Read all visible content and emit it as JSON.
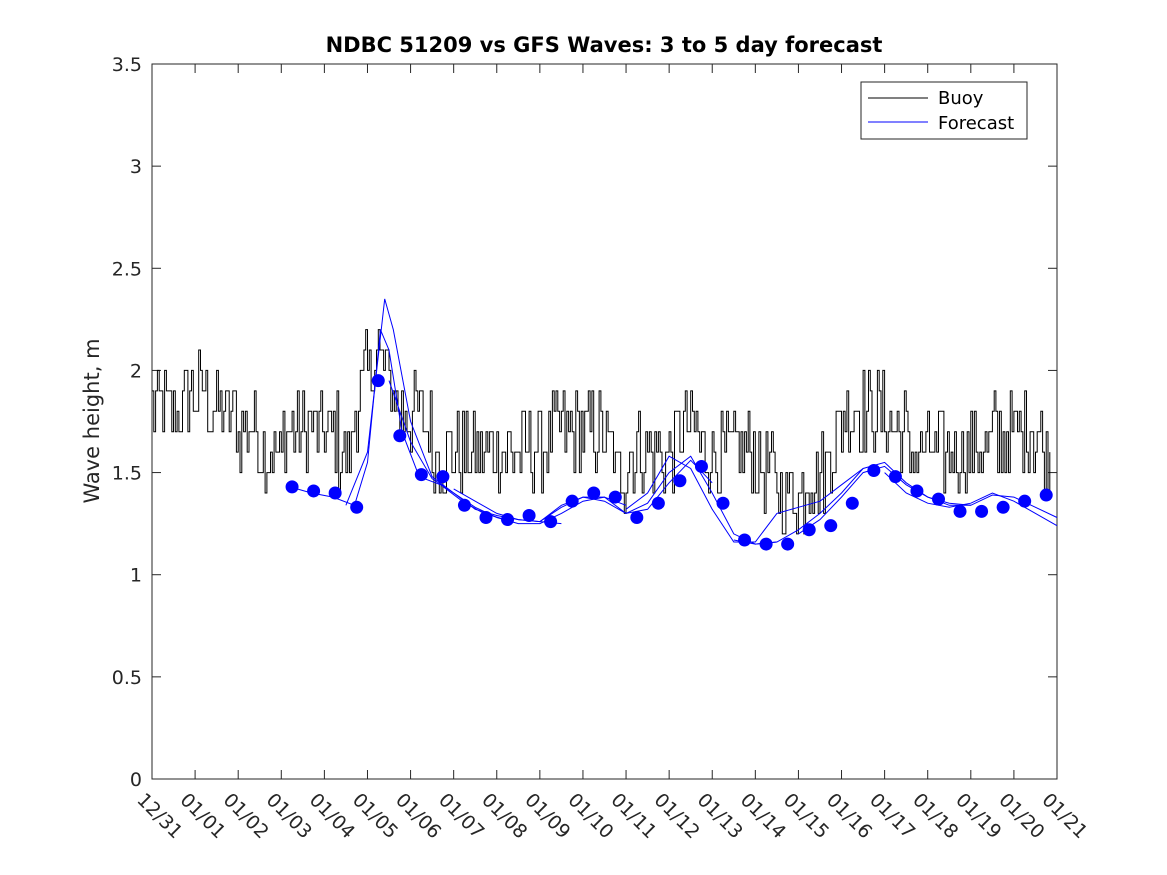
{
  "chart_data": {
    "type": "line",
    "title": "NDBC 51209 vs GFS Waves: 3 to 5 day forecast",
    "xlabel": "",
    "ylabel": "Wave height, m",
    "xlim": [
      0,
      21
    ],
    "ylim": [
      0,
      3.5
    ],
    "yticks": [
      "0",
      "0.5",
      "1",
      "1.5",
      "2",
      "2.5",
      "3",
      "3.5"
    ],
    "xtick_labels": [
      "12/31",
      "01/01",
      "01/02",
      "01/03",
      "01/04",
      "01/05",
      "01/06",
      "01/07",
      "01/08",
      "01/09",
      "01/10",
      "01/11",
      "01/12",
      "01/13",
      "01/14",
      "01/15",
      "01/16",
      "01/17",
      "01/18",
      "01/19",
      "01/20",
      "01/21"
    ],
    "legend": {
      "placement": "top-right",
      "entries": [
        "Buoy",
        "Forecast"
      ]
    },
    "buoy_keypoints": {
      "x": [
        0,
        0.5,
        1.0,
        1.5,
        2.0,
        2.5,
        2.9,
        3.3,
        3.8,
        4.3,
        4.6,
        4.8,
        5.0,
        5.2,
        5.5,
        5.8,
        6.0,
        6.3,
        6.6,
        6.9,
        7.5,
        8.0,
        8.5,
        9.0,
        9.5,
        10.0,
        10.5,
        10.8,
        11.0,
        11.5,
        12.0,
        12.4,
        12.8,
        13.0,
        13.5,
        14.0,
        14.3,
        14.6,
        14.9,
        15.3,
        15.7,
        16.0,
        16.4,
        16.8,
        17.1,
        17.5,
        18.0,
        18.5,
        19.0,
        19.5,
        20.0,
        20.5,
        20.8
      ],
      "y": [
        1.8,
        1.8,
        1.9,
        1.8,
        1.75,
        1.65,
        1.6,
        1.75,
        1.7,
        1.65,
        1.6,
        1.9,
        2.0,
        2.1,
        1.9,
        1.8,
        1.85,
        1.75,
        1.6,
        1.6,
        1.65,
        1.6,
        1.65,
        1.6,
        1.7,
        1.65,
        1.7,
        1.5,
        1.55,
        1.6,
        1.6,
        1.75,
        1.6,
        1.55,
        1.55,
        1.55,
        1.5,
        1.4,
        1.38,
        1.5,
        1.55,
        1.75,
        1.8,
        1.85,
        1.75,
        1.65,
        1.6,
        1.65,
        1.6,
        1.65,
        1.65,
        1.7,
        1.6
      ]
    },
    "forecast_points": {
      "x": [
        3.25,
        3.75,
        4.25,
        4.75,
        5.25,
        5.75,
        6.25,
        6.75,
        7.25,
        7.75,
        8.25,
        8.75,
        9.25,
        9.75,
        10.25,
        10.75,
        11.25,
        11.75,
        12.25,
        12.75,
        13.25,
        13.75,
        14.25,
        14.75,
        15.25,
        15.75,
        16.25,
        16.75,
        17.25,
        17.75,
        18.25,
        18.75,
        19.25,
        19.75,
        20.25,
        20.75
      ],
      "y": [
        1.43,
        1.41,
        1.4,
        1.33,
        1.95,
        1.68,
        1.49,
        1.48,
        1.34,
        1.28,
        1.27,
        1.29,
        1.26,
        1.36,
        1.4,
        1.38,
        1.28,
        1.35,
        1.46,
        1.53,
        1.35,
        1.17,
        1.15,
        1.15,
        1.22,
        1.24,
        1.35,
        1.51,
        1.48,
        1.41,
        1.37,
        1.31,
        1.31,
        1.33,
        1.36,
        1.39
      ]
    },
    "forecast_runs": [
      {
        "x": [
          3.2,
          3.7,
          4.2,
          4.7,
          5.0,
          5.3,
          5.5,
          5.8,
          6.2,
          6.7,
          7.2,
          7.7,
          8.2
        ],
        "y": [
          1.43,
          1.4,
          1.38,
          1.34,
          1.55,
          2.2,
          2.1,
          1.7,
          1.48,
          1.44,
          1.36,
          1.3,
          1.27
        ]
      },
      {
        "x": [
          4.5,
          5.0,
          5.4,
          5.6,
          6.0,
          6.5,
          7.0,
          7.5,
          8.0,
          8.5,
          9.0,
          9.5
        ],
        "y": [
          1.34,
          1.6,
          2.35,
          2.2,
          1.75,
          1.48,
          1.4,
          1.32,
          1.29,
          1.27,
          1.26,
          1.25
        ]
      },
      {
        "x": [
          5.5,
          6.0,
          6.5,
          7.0,
          7.5,
          8.0,
          8.5,
          9.0,
          9.5,
          10.0,
          10.5,
          11.0
        ],
        "y": [
          1.95,
          1.65,
          1.47,
          1.4,
          1.33,
          1.28,
          1.25,
          1.25,
          1.3,
          1.36,
          1.38,
          1.34
        ]
      },
      {
        "x": [
          7.0,
          7.5,
          8.0,
          8.5,
          9.0,
          9.5,
          10.0,
          10.5,
          11.0,
          11.5,
          12.0,
          12.5,
          13.0
        ],
        "y": [
          1.42,
          1.36,
          1.3,
          1.27,
          1.26,
          1.33,
          1.38,
          1.38,
          1.3,
          1.32,
          1.45,
          1.56,
          1.45
        ]
      },
      {
        "x": [
          9.0,
          9.5,
          10.0,
          10.5,
          11.0,
          11.5,
          12.0,
          12.5,
          13.0,
          13.5,
          14.0,
          14.5
        ],
        "y": [
          1.26,
          1.34,
          1.38,
          1.36,
          1.3,
          1.35,
          1.5,
          1.58,
          1.4,
          1.2,
          1.15,
          1.16
        ]
      },
      {
        "x": [
          11.0,
          11.5,
          12.0,
          12.5,
          13.0,
          13.5,
          14.0,
          14.5,
          15.0,
          15.5,
          16.0,
          16.5
        ],
        "y": [
          1.32,
          1.4,
          1.58,
          1.52,
          1.32,
          1.16,
          1.16,
          1.3,
          1.33,
          1.36,
          1.44,
          1.52
        ]
      },
      {
        "x": [
          13.5,
          14.0,
          14.5,
          15.0,
          15.5,
          16.0,
          16.5,
          17.0,
          17.5,
          18.0,
          18.5,
          19.0
        ],
        "y": [
          1.17,
          1.15,
          1.16,
          1.22,
          1.3,
          1.4,
          1.52,
          1.55,
          1.45,
          1.38,
          1.35,
          1.34
        ]
      },
      {
        "x": [
          15.0,
          15.5,
          16.0,
          16.5,
          17.0,
          17.5,
          18.0,
          18.5,
          19.0,
          19.5,
          20.0,
          20.5,
          21.0
        ],
        "y": [
          1.2,
          1.27,
          1.38,
          1.5,
          1.53,
          1.44,
          1.38,
          1.34,
          1.34,
          1.39,
          1.38,
          1.33,
          1.28
        ]
      },
      {
        "x": [
          17.0,
          17.5,
          18.0,
          18.5,
          19.0,
          19.5,
          20.0,
          20.5,
          21.0
        ],
        "y": [
          1.5,
          1.4,
          1.35,
          1.33,
          1.35,
          1.4,
          1.36,
          1.3,
          1.24
        ]
      }
    ],
    "colors": {
      "buoy": "#000000",
      "forecast": "#0000ff",
      "axes": "#262626"
    }
  }
}
